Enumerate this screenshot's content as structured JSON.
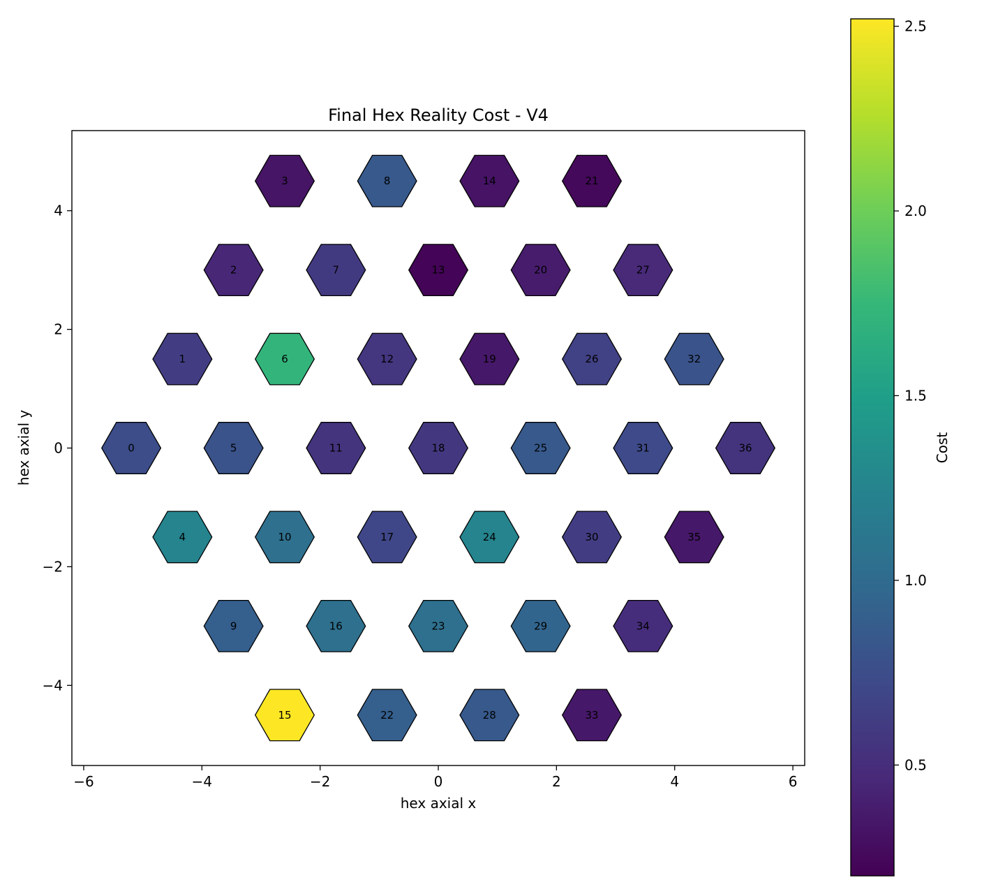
{
  "chart_data": {
    "type": "heatmap",
    "title": "Final Hex Reality Cost - V4",
    "xlabel": "hex axial x",
    "ylabel": "hex axial y",
    "xlim": [
      -6.2,
      6.2
    ],
    "ylim": [
      -5.35,
      5.35
    ],
    "xticks": [
      -6,
      -4,
      -2,
      0,
      2,
      4,
      6
    ],
    "yticks": [
      -4,
      -2,
      0,
      2,
      4
    ],
    "colorbar": {
      "label": "Cost",
      "colormap": "viridis",
      "range": [
        0.2,
        2.52
      ],
      "ticks": [
        0.5,
        1.0,
        1.5,
        2.0,
        2.5
      ]
    },
    "cells": [
      {
        "id": "0",
        "x": -5.196,
        "y": 0.0,
        "cost": 0.75
      },
      {
        "id": "1",
        "x": -4.33,
        "y": 1.5,
        "cost": 0.62
      },
      {
        "id": "2",
        "x": -3.464,
        "y": 3.0,
        "cost": 0.45
      },
      {
        "id": "3",
        "x": -2.598,
        "y": 4.5,
        "cost": 0.33
      },
      {
        "id": "4",
        "x": -4.33,
        "y": -1.5,
        "cost": 1.25
      },
      {
        "id": "5",
        "x": -3.464,
        "y": 0.0,
        "cost": 0.8
      },
      {
        "id": "6",
        "x": -2.598,
        "y": 1.5,
        "cost": 1.72
      },
      {
        "id": "7",
        "x": -1.732,
        "y": 3.0,
        "cost": 0.6
      },
      {
        "id": "8",
        "x": -0.866,
        "y": 4.5,
        "cost": 0.85
      },
      {
        "id": "9",
        "x": -3.464,
        "y": -3.0,
        "cost": 0.9
      },
      {
        "id": "10",
        "x": -2.598,
        "y": -1.5,
        "cost": 1.05
      },
      {
        "id": "11",
        "x": -1.732,
        "y": 0.0,
        "cost": 0.55
      },
      {
        "id": "12",
        "x": -0.866,
        "y": 1.5,
        "cost": 0.57
      },
      {
        "id": "13",
        "x": 0.0,
        "y": 3.0,
        "cost": 0.22
      },
      {
        "id": "14",
        "x": 0.866,
        "y": 4.5,
        "cost": 0.32
      },
      {
        "id": "15",
        "x": -2.598,
        "y": -4.5,
        "cost": 2.52
      },
      {
        "id": "16",
        "x": -1.732,
        "y": -3.0,
        "cost": 1.05
      },
      {
        "id": "17",
        "x": -0.866,
        "y": -1.5,
        "cost": 0.7
      },
      {
        "id": "18",
        "x": 0.0,
        "y": 0.0,
        "cost": 0.58
      },
      {
        "id": "19",
        "x": 0.866,
        "y": 1.5,
        "cost": 0.35
      },
      {
        "id": "20",
        "x": 1.732,
        "y": 3.0,
        "cost": 0.38
      },
      {
        "id": "21",
        "x": 2.598,
        "y": 4.5,
        "cost": 0.25
      },
      {
        "id": "22",
        "x": -0.866,
        "y": -4.5,
        "cost": 0.9
      },
      {
        "id": "23",
        "x": 0.0,
        "y": -3.0,
        "cost": 1.05
      },
      {
        "id": "24",
        "x": 0.866,
        "y": -1.5,
        "cost": 1.25
      },
      {
        "id": "25",
        "x": 1.732,
        "y": 0.0,
        "cost": 0.85
      },
      {
        "id": "26",
        "x": 2.598,
        "y": 1.5,
        "cost": 0.65
      },
      {
        "id": "27",
        "x": 3.464,
        "y": 3.0,
        "cost": 0.47
      },
      {
        "id": "28",
        "x": 0.866,
        "y": -4.5,
        "cost": 0.85
      },
      {
        "id": "29",
        "x": 1.732,
        "y": -3.0,
        "cost": 0.95
      },
      {
        "id": "30",
        "x": 2.598,
        "y": -1.5,
        "cost": 0.62
      },
      {
        "id": "31",
        "x": 3.464,
        "y": 0.0,
        "cost": 0.72
      },
      {
        "id": "32",
        "x": 4.33,
        "y": 1.5,
        "cost": 0.8
      },
      {
        "id": "33",
        "x": 2.598,
        "y": -4.5,
        "cost": 0.35
      },
      {
        "id": "34",
        "x": 3.464,
        "y": -3.0,
        "cost": 0.5
      },
      {
        "id": "35",
        "x": 4.33,
        "y": -1.5,
        "cost": 0.35
      },
      {
        "id": "36",
        "x": 5.196,
        "y": 0.0,
        "cost": 0.55
      }
    ]
  }
}
